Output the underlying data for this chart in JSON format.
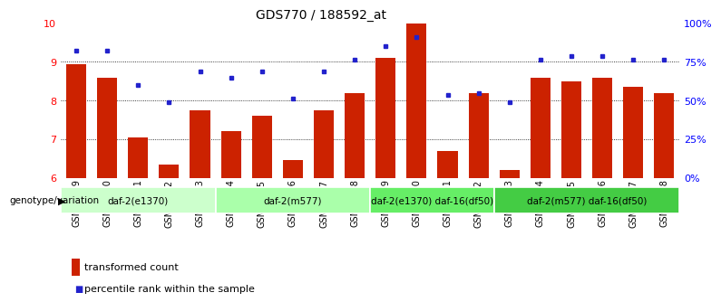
{
  "title": "GDS770 / 188592_at",
  "samples": [
    "GSM28389",
    "GSM28390",
    "GSM28391",
    "GSM28392",
    "GSM28393",
    "GSM28394",
    "GSM28395",
    "GSM28396",
    "GSM28397",
    "GSM28398",
    "GSM28399",
    "GSM28400",
    "GSM28401",
    "GSM28402",
    "GSM28403",
    "GSM28404",
    "GSM28405",
    "GSM28406",
    "GSM28407",
    "GSM28408"
  ],
  "bar_values": [
    8.95,
    8.6,
    7.05,
    6.35,
    7.75,
    7.2,
    7.6,
    6.45,
    7.75,
    8.2,
    9.1,
    10.0,
    6.7,
    8.2,
    6.2,
    8.6,
    8.5,
    8.6,
    8.35,
    8.2
  ],
  "dot_values": [
    9.3,
    9.3,
    8.4,
    7.95,
    8.75,
    8.6,
    8.75,
    8.05,
    8.75,
    9.05,
    9.4,
    9.65,
    8.15,
    8.2,
    7.95,
    9.05,
    9.15,
    9.15,
    9.05,
    9.05
  ],
  "bar_color": "#cc2200",
  "dot_color": "#2222cc",
  "ymin": 6,
  "ymax": 10,
  "yticks": [
    6,
    7,
    8,
    9,
    10
  ],
  "y2ticks_pct": [
    0,
    25,
    50,
    75,
    100
  ],
  "y2labels": [
    "0",
    "25",
    "50",
    "75",
    "100%"
  ],
  "groups": [
    {
      "label": "daf-2(e1370)",
      "start": 0,
      "end": 5,
      "color": "#ccffcc"
    },
    {
      "label": "daf-2(m577)",
      "start": 5,
      "end": 10,
      "color": "#aaffaa"
    },
    {
      "label": "daf-2(e1370) daf-16(df50)",
      "start": 10,
      "end": 14,
      "color": "#66ee66"
    },
    {
      "label": "daf-2(m577) daf-16(df50)",
      "start": 14,
      "end": 20,
      "color": "#44cc44"
    }
  ],
  "genotype_label": "genotype/variation",
  "legend_bar_label": "transformed count",
  "legend_dot_label": "percentile rank within the sample",
  "title_fontsize": 10,
  "tick_label_fontsize": 7,
  "group_label_fontsize": 7.5,
  "axis_label_fontsize": 8
}
